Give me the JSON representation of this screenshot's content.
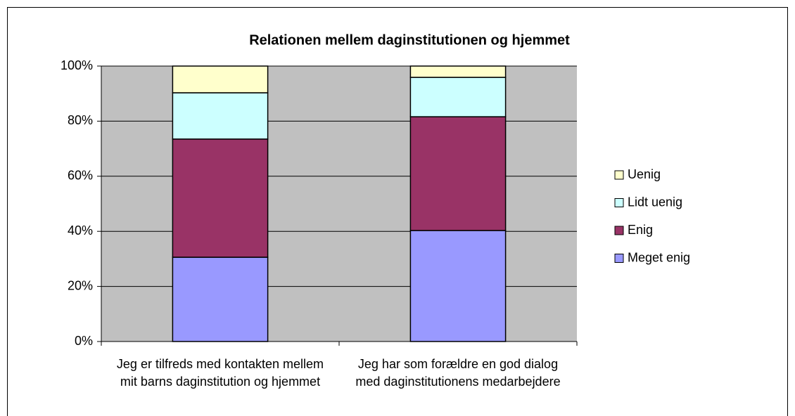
{
  "chart_data": {
    "type": "bar",
    "stacked": true,
    "title": "Relationen mellem daginstitutionen og hjemmet",
    "categories": [
      "Jeg er tilfreds med kontakten mellem mit barns daginstitution og hjemmet",
      "Jeg har som forældre en god dialog med daginstitutionens medarbejdere"
    ],
    "series": [
      {
        "name": "Meget enig",
        "color": "#9999ff",
        "values": [
          30.6,
          40.3
        ]
      },
      {
        "name": "Enig",
        "color": "#993366",
        "values": [
          42.9,
          41.3
        ]
      },
      {
        "name": "Lidt uenig",
        "color": "#ccffff",
        "values": [
          16.8,
          14.3
        ]
      },
      {
        "name": "Uenig",
        "color": "#ffffcc",
        "values": [
          9.7,
          4.1
        ]
      }
    ],
    "ylim": [
      0,
      100
    ],
    "yticks": [
      {
        "value": 0,
        "label": "0%"
      },
      {
        "value": 20,
        "label": "20%"
      },
      {
        "value": 40,
        "label": "40%"
      },
      {
        "value": 60,
        "label": "60%"
      },
      {
        "value": 80,
        "label": "80%"
      },
      {
        "value": 100,
        "label": "100%"
      }
    ],
    "grid": true,
    "legend": "right"
  }
}
